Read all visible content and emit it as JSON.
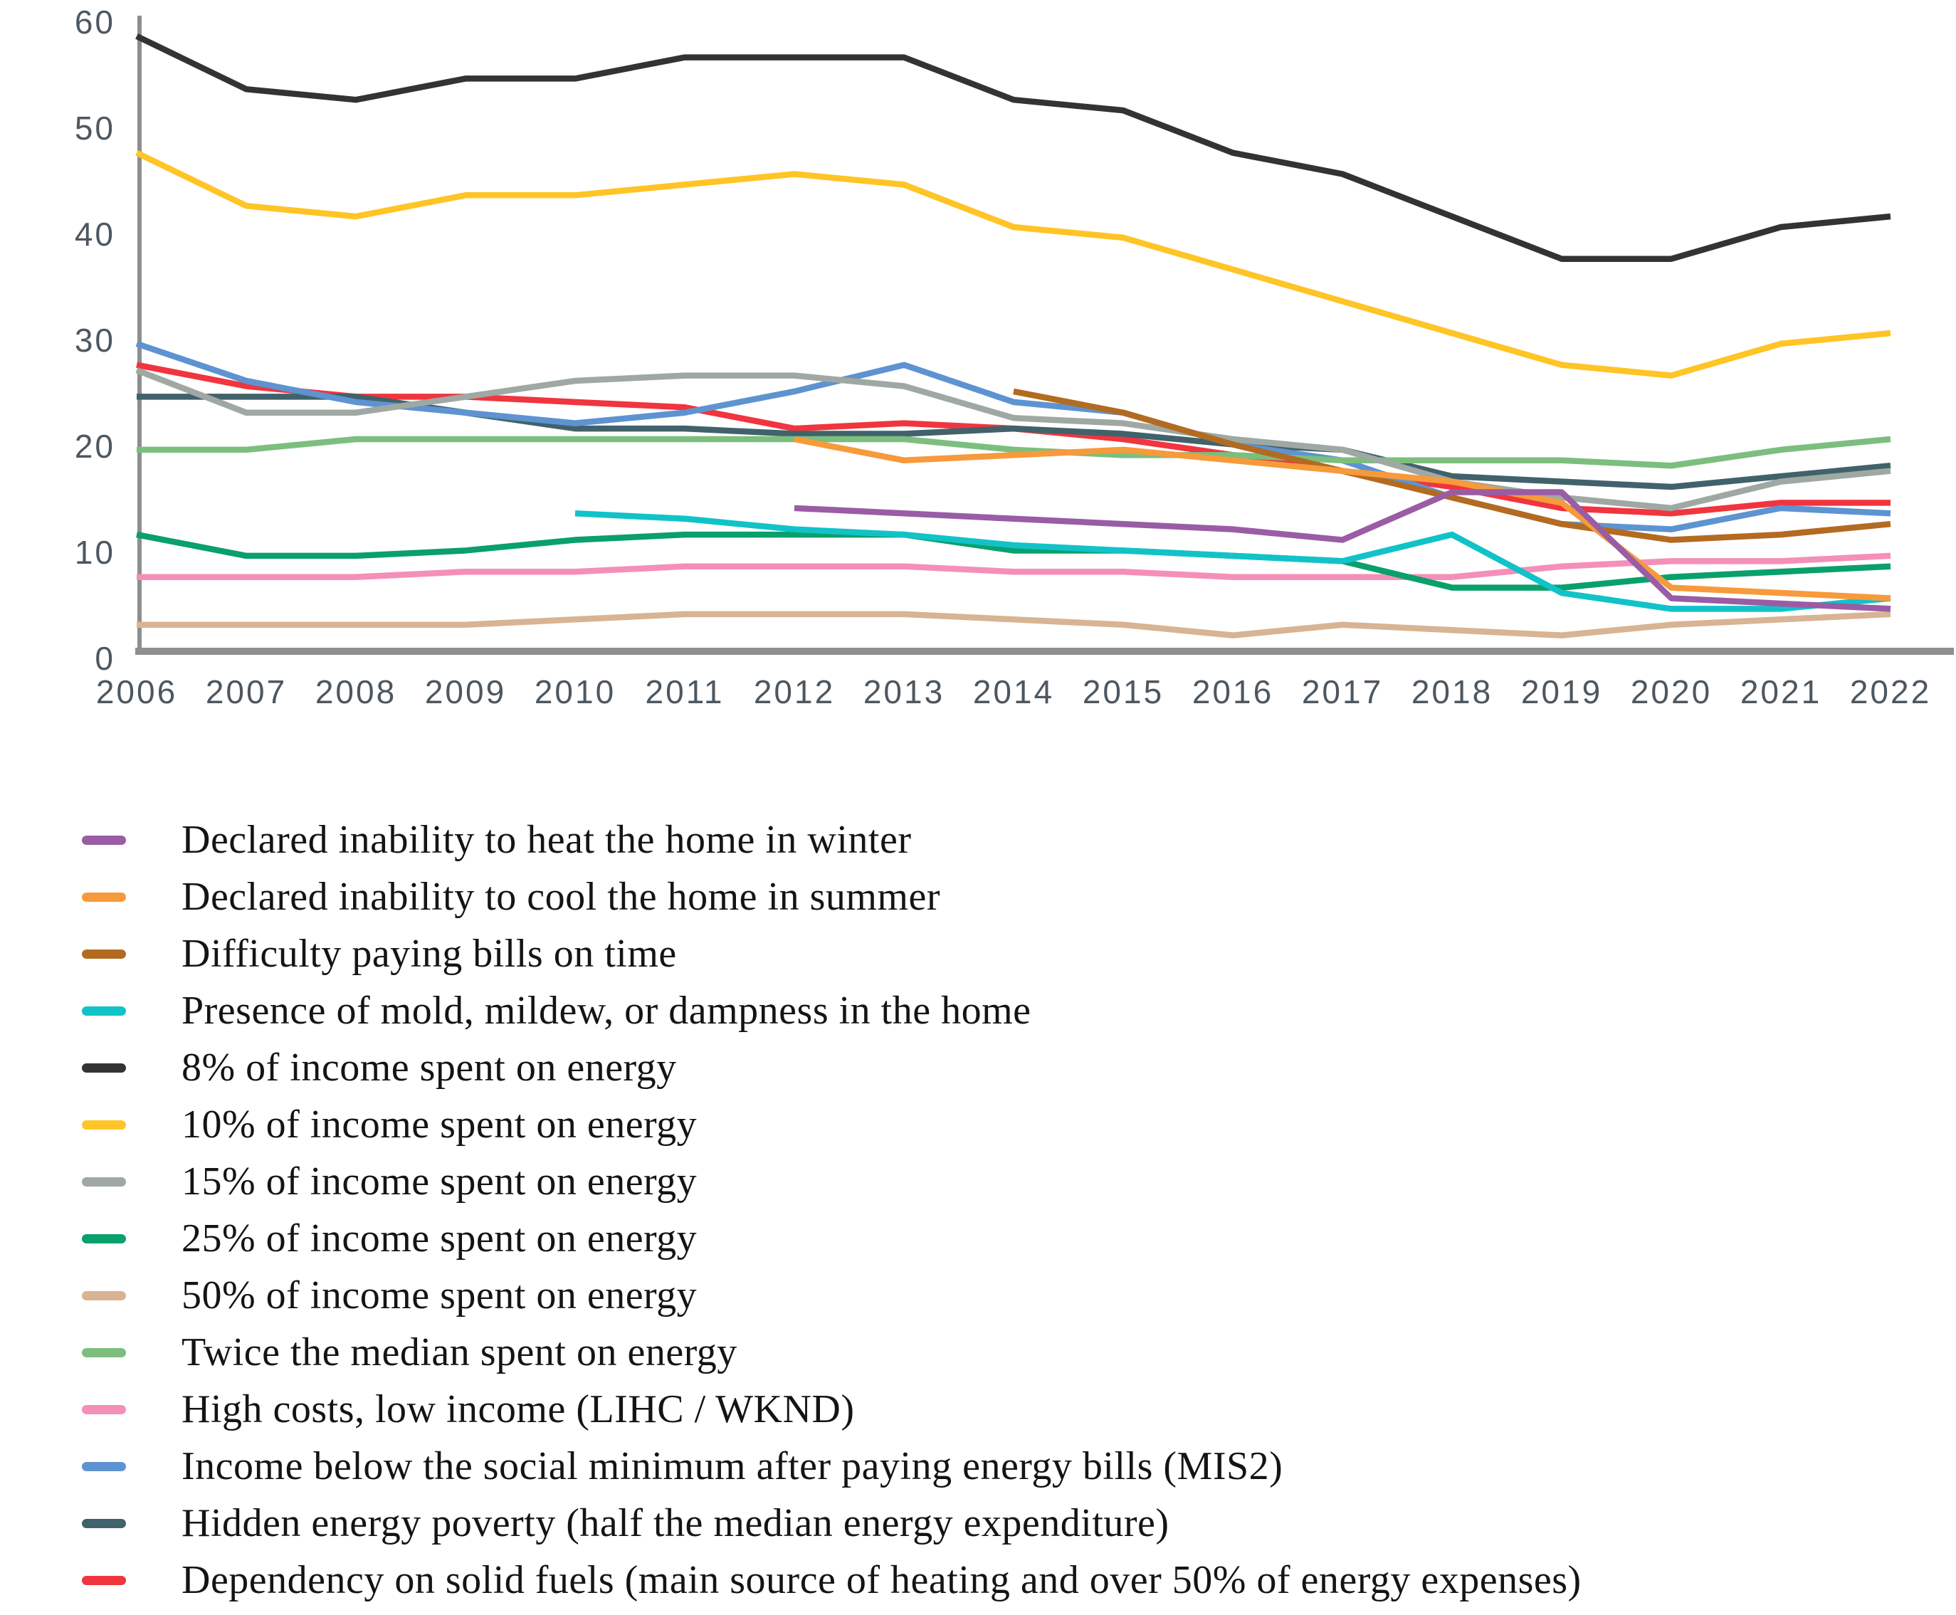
{
  "figure": {
    "background": "#ffffff",
    "axis_color": "#8e8e8e",
    "tick_label_color": "#4d5760"
  },
  "chart_data": {
    "type": "line",
    "title": "",
    "xlabel": "",
    "ylabel": "",
    "grid": false,
    "legend_position": "bottom-left",
    "ylim": [
      0,
      60
    ],
    "y_ticks": [
      0,
      10,
      20,
      30,
      40,
      50,
      60
    ],
    "x": [
      2006,
      2007,
      2008,
      2009,
      2010,
      2011,
      2012,
      2013,
      2014,
      2015,
      2016,
      2017,
      2018,
      2019,
      2020,
      2021,
      2022
    ],
    "x_tick_labels": [
      "2006",
      "2007",
      "2008",
      "2009",
      "2010",
      "2011",
      "2012",
      "2013",
      "2014",
      "2015",
      "2016",
      "2017",
      "2018",
      "2019",
      "2020",
      "2021",
      "2022"
    ],
    "series": [
      {
        "key": "heat-winter",
        "name": "Declared inability to heat the home in winter",
        "color": "#9A5CA4",
        "values": [
          null,
          null,
          null,
          null,
          null,
          null,
          13.5,
          13,
          12.5,
          12,
          11.5,
          10.5,
          15,
          15,
          5,
          4.5,
          4
        ]
      },
      {
        "key": "cool-summer",
        "name": "Declared inability to cool the home in summer",
        "color": "#F79A3B",
        "values": [
          null,
          null,
          null,
          null,
          null,
          null,
          20,
          18,
          18.5,
          19,
          18,
          17,
          16,
          14,
          6,
          5.5,
          5
        ]
      },
      {
        "key": "bills-on-time",
        "name": "Difficulty paying bills on time",
        "color": "#B26B21",
        "values": [
          null,
          null,
          null,
          null,
          null,
          null,
          null,
          null,
          24.5,
          22.5,
          19.5,
          17,
          14.5,
          12,
          10.5,
          11,
          12
        ]
      },
      {
        "key": "mold-dampness",
        "name": "Presence of mold, mildew, or dampness in the home",
        "color": "#12C2C9",
        "values": [
          null,
          null,
          null,
          null,
          13,
          12.5,
          11.5,
          11,
          10,
          9.5,
          9,
          8.5,
          11,
          5.5,
          4,
          4,
          5
        ]
      },
      {
        "key": "income-8pct",
        "name": "8% of income spent on energy",
        "color": "#333333",
        "values": [
          58,
          53,
          52,
          54,
          54,
          56,
          56,
          56,
          52,
          51,
          47,
          45,
          41,
          37,
          37,
          40,
          41
        ]
      },
      {
        "key": "income-10pct",
        "name": "10% of income spent on energy",
        "color": "#FFC425",
        "values": [
          47,
          42,
          41,
          43,
          43,
          44,
          45,
          44,
          40,
          39,
          36,
          33,
          30,
          27,
          26,
          29,
          30
        ]
      },
      {
        "key": "income-15pct",
        "name": "15% of income spent on energy",
        "color": "#9FA8A3",
        "values": [
          26.5,
          22.5,
          22.5,
          24,
          25.5,
          26,
          26,
          25,
          22,
          21.5,
          20,
          19,
          16,
          14.5,
          13.5,
          16,
          17
        ]
      },
      {
        "key": "income-25pct",
        "name": "25% of income spent on energy",
        "color": "#09A06B",
        "values": [
          11,
          9,
          9,
          9.5,
          10.5,
          11,
          11,
          11,
          9.5,
          9.5,
          9,
          8.5,
          6,
          6,
          7,
          7.5,
          8
        ]
      },
      {
        "key": "income-50pct",
        "name": "50% of income spent on energy",
        "color": "#D8B394",
        "values": [
          2.5,
          2.5,
          2.5,
          2.5,
          3,
          3.5,
          3.5,
          3.5,
          3,
          2.5,
          1.5,
          2.5,
          2,
          1.5,
          2.5,
          3,
          3.5
        ]
      },
      {
        "key": "twice-median",
        "name": "Twice the median spent on energy",
        "color": "#7CBE7E",
        "values": [
          19,
          19,
          20,
          20,
          20,
          20,
          20,
          20,
          19,
          18.5,
          18.5,
          18,
          18,
          18,
          17.5,
          19,
          20
        ]
      },
      {
        "key": "lihc-wknd",
        "name": "High costs, low income (LIHC / WKND)",
        "color": "#F48FB9",
        "values": [
          7,
          7,
          7,
          7.5,
          7.5,
          8,
          8,
          8,
          7.5,
          7.5,
          7,
          7,
          7,
          8,
          8.5,
          8.5,
          9
        ]
      },
      {
        "key": "mis2",
        "name": "Income below the social minimum after paying energy bills (MIS2)",
        "color": "#5E93D1",
        "values": [
          29,
          25.5,
          23.5,
          22.5,
          21.5,
          22.5,
          24.5,
          27,
          23.5,
          22.5,
          19.5,
          18,
          14.5,
          12,
          11.5,
          13.5,
          13
        ]
      },
      {
        "key": "hidden-energy-poverty",
        "name": "Hidden energy poverty (half the median energy expenditure)",
        "color": "#41626B",
        "values": [
          24,
          24,
          24,
          22.5,
          21,
          21,
          20.5,
          20.5,
          21,
          20.5,
          19.5,
          19,
          16.5,
          16,
          15.5,
          16.5,
          17.5
        ]
      },
      {
        "key": "solid-fuels",
        "name": "Dependency on solid fuels (main source of heating and over 50% of energy expenses)",
        "color": "#F0353F",
        "values": [
          27,
          25,
          24,
          24,
          23.5,
          23,
          21,
          21.5,
          21,
          20,
          18.5,
          17,
          15.5,
          13.5,
          13,
          14,
          14
        ]
      }
    ]
  }
}
